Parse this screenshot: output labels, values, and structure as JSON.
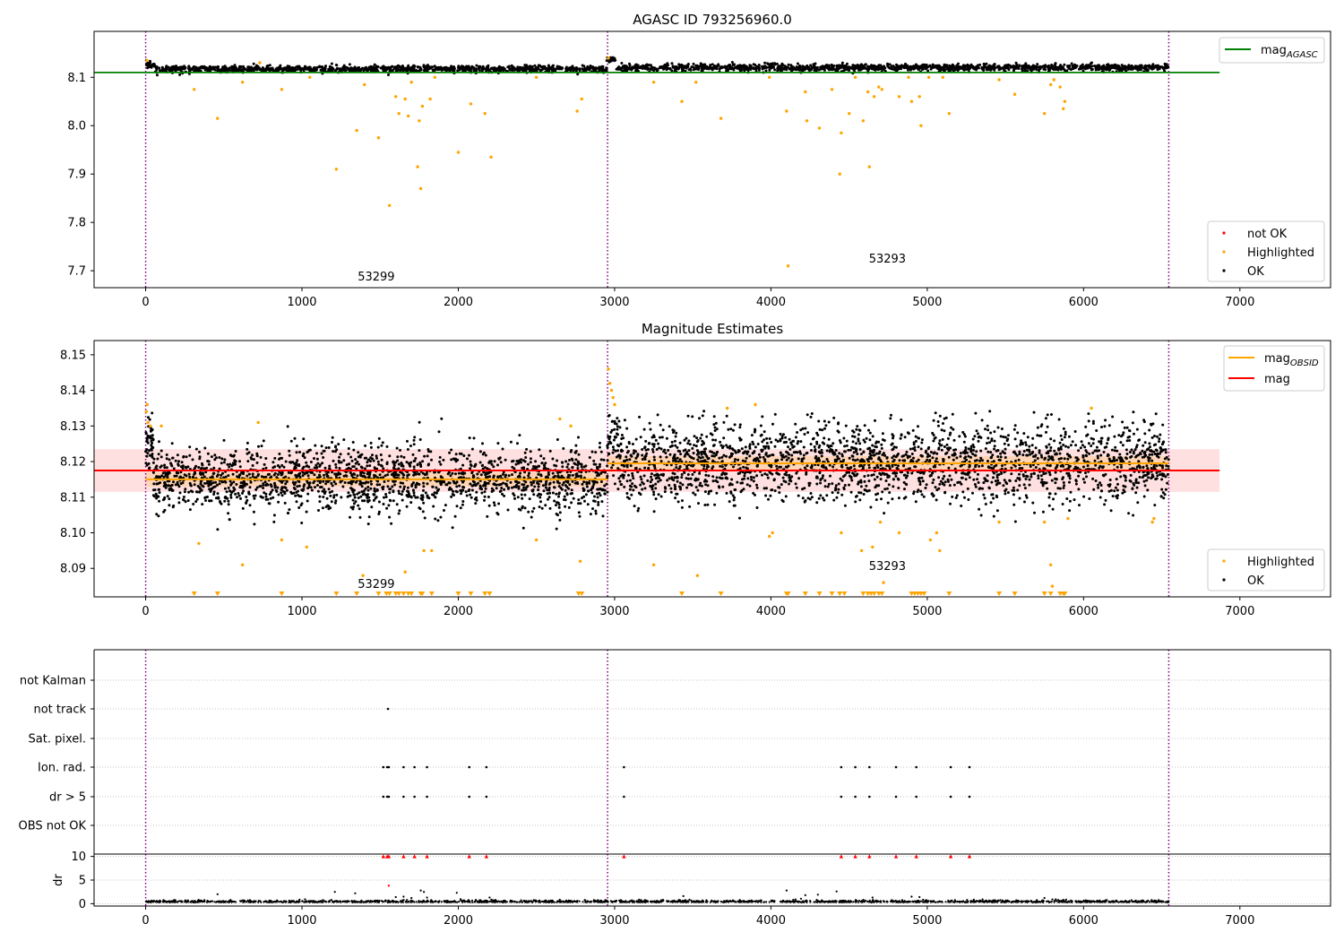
{
  "chart_data": [
    {
      "type": "scatter",
      "title": "AGASC ID 793256960.0",
      "xlabel": "",
      "ylabel": "",
      "xlim": [
        -330,
        7580
      ],
      "ylim": [
        7.665,
        8.195
      ],
      "xticks": [
        0,
        1000,
        2000,
        3000,
        4000,
        5000,
        6000,
        7000
      ],
      "yticks": [
        7.7,
        7.8,
        7.9,
        8.0,
        8.1
      ],
      "ytick_labels": [
        "7.7",
        "7.8",
        "7.9",
        "8.0",
        "8.1"
      ],
      "grid": false,
      "vlines": [
        0,
        2955,
        6545
      ],
      "vline_color": "#800080",
      "obsid_labels": [
        {
          "text": "53299",
          "x": 1475,
          "y": 7.68
        },
        {
          "text": "53293",
          "x": 4745,
          "y": 7.717
        }
      ],
      "reference_line": {
        "name": "mag_AGASC",
        "legend_main": "mag",
        "legend_sub": "AGASC",
        "y": 8.11,
        "x_range": [
          -330,
          6870
        ],
        "color": "#008000"
      },
      "series": [
        {
          "name": "not OK",
          "color": "#ff0000",
          "points": []
        },
        {
          "name": "Highlighted",
          "color": "#ffa500",
          "points": [
            [
              8,
              8.135
            ],
            [
              310,
              8.075
            ],
            [
              460,
              8.015
            ],
            [
              620,
              8.09
            ],
            [
              730,
              8.13
            ],
            [
              870,
              8.075
            ],
            [
              1050,
              8.1
            ],
            [
              1220,
              7.91
            ],
            [
              1350,
              7.99
            ],
            [
              1400,
              8.085
            ],
            [
              1490,
              7.975
            ],
            [
              1560,
              7.835
            ],
            [
              1600,
              8.06
            ],
            [
              1620,
              8.025
            ],
            [
              1660,
              8.055
            ],
            [
              1680,
              8.02
            ],
            [
              1700,
              8.09
            ],
            [
              1740,
              7.915
            ],
            [
              1750,
              8.01
            ],
            [
              1760,
              7.87
            ],
            [
              1770,
              8.04
            ],
            [
              1820,
              8.055
            ],
            [
              1850,
              8.1
            ],
            [
              2000,
              7.945
            ],
            [
              2080,
              8.045
            ],
            [
              2170,
              8.025
            ],
            [
              2210,
              7.935
            ],
            [
              2500,
              8.1
            ],
            [
              2760,
              8.03
            ],
            [
              2790,
              8.055
            ],
            [
              2960,
              8.14
            ],
            [
              3250,
              8.09
            ],
            [
              3430,
              8.05
            ],
            [
              3520,
              8.09
            ],
            [
              3680,
              8.015
            ],
            [
              3990,
              8.1
            ],
            [
              4100,
              8.03
            ],
            [
              4110,
              7.71
            ],
            [
              4220,
              8.07
            ],
            [
              4230,
              8.01
            ],
            [
              4310,
              7.995
            ],
            [
              4390,
              8.075
            ],
            [
              4440,
              7.9
            ],
            [
              4450,
              7.985
            ],
            [
              4500,
              8.025
            ],
            [
              4540,
              8.1
            ],
            [
              4590,
              8.01
            ],
            [
              4620,
              8.07
            ],
            [
              4630,
              7.915
            ],
            [
              4660,
              8.06
            ],
            [
              4690,
              8.08
            ],
            [
              4710,
              8.075
            ],
            [
              4820,
              8.06
            ],
            [
              4880,
              8.1
            ],
            [
              4900,
              8.05
            ],
            [
              4950,
              8.06
            ],
            [
              4960,
              8.0
            ],
            [
              5010,
              8.1
            ],
            [
              5100,
              8.1
            ],
            [
              5140,
              8.025
            ],
            [
              5460,
              8.095
            ],
            [
              5560,
              8.065
            ],
            [
              5750,
              8.025
            ],
            [
              5790,
              8.085
            ],
            [
              5810,
              8.095
            ],
            [
              5850,
              8.08
            ],
            [
              5870,
              8.035
            ],
            [
              5880,
              8.05
            ]
          ]
        },
        {
          "name": "OK",
          "color": "#000000",
          "x_range": [
            0,
            6545
          ],
          "y_center": 8.117,
          "y_spread": 0.005
        }
      ],
      "legend": {
        "position": "top-right",
        "entries": [
          "mag_AGASC"
        ]
      },
      "legend2": {
        "position": "lower-right",
        "entries": [
          "not OK",
          "Highlighted",
          "OK"
        ]
      }
    },
    {
      "type": "scatter",
      "title": "Magnitude Estimates",
      "xlabel": "",
      "ylabel": "",
      "xlim": [
        -330,
        7580
      ],
      "ylim": [
        8.082,
        8.154
      ],
      "xticks": [
        0,
        1000,
        2000,
        3000,
        4000,
        5000,
        6000,
        7000
      ],
      "yticks": [
        8.09,
        8.1,
        8.11,
        8.12,
        8.13,
        8.14,
        8.15
      ],
      "ytick_labels": [
        "8.09",
        "8.10",
        "8.11",
        "8.12",
        "8.13",
        "8.14",
        "8.15"
      ],
      "grid": false,
      "vlines": [
        0,
        2955,
        6545
      ],
      "vline_color": "#800080",
      "obsid_labels": [
        {
          "text": "53299",
          "x": 1475,
          "y": 8.0845
        },
        {
          "text": "53293",
          "x": 4745,
          "y": 8.0895
        }
      ],
      "mag": {
        "name": "mag",
        "y": 8.1175,
        "band": [
          8.1115,
          8.1235
        ],
        "x_range": [
          -330,
          6870
        ],
        "color": "#ff0000"
      },
      "mag_obsid": {
        "name": "mag_OBSID",
        "legend_main": "mag",
        "legend_sub": "OBSID",
        "color": "#ffa500",
        "segments": [
          {
            "x_range": [
              0,
              2955
            ],
            "y": 8.115,
            "band": [
              8.113,
              8.117
            ]
          },
          {
            "x_range": [
              2955,
              6545
            ],
            "y": 8.1195,
            "band": [
              8.1175,
              8.1215
            ]
          }
        ]
      },
      "clipped_marker_y": 8.0825,
      "clipped_x": [
        310,
        460,
        870,
        1220,
        1350,
        1490,
        1540,
        1560,
        1600,
        1620,
        1650,
        1680,
        1700,
        1760,
        1770,
        1830,
        2000,
        2080,
        2170,
        2200,
        2770,
        2790,
        3430,
        3680,
        4100,
        4110,
        4220,
        4310,
        4390,
        4440,
        4470,
        4590,
        4620,
        4640,
        4660,
        4690,
        4710,
        4900,
        4920,
        4940,
        4960,
        4980,
        5140,
        5460,
        5560,
        5750,
        5790,
        5850,
        5870,
        5880
      ],
      "series": [
        {
          "name": "Highlighted",
          "color": "#ffa500",
          "points": [
            [
              5,
              8.134
            ],
            [
              10,
              8.136
            ],
            [
              15,
              8.131
            ],
            [
              30,
              8.13
            ],
            [
              100,
              8.13
            ],
            [
              340,
              8.097
            ],
            [
              620,
              8.091
            ],
            [
              720,
              8.131
            ],
            [
              870,
              8.098
            ],
            [
              1030,
              8.096
            ],
            [
              1390,
              8.088
            ],
            [
              1660,
              8.089
            ],
            [
              1780,
              8.095
            ],
            [
              1830,
              8.095
            ],
            [
              2500,
              8.098
            ],
            [
              2650,
              8.132
            ],
            [
              2720,
              8.13
            ],
            [
              2780,
              8.092
            ],
            [
              2960,
              8.146
            ],
            [
              2970,
              8.142
            ],
            [
              2980,
              8.14
            ],
            [
              2990,
              8.138
            ],
            [
              3000,
              8.136
            ],
            [
              3250,
              8.091
            ],
            [
              3530,
              8.088
            ],
            [
              3720,
              8.135
            ],
            [
              3900,
              8.136
            ],
            [
              3990,
              8.099
            ],
            [
              4010,
              8.1
            ],
            [
              4450,
              8.1
            ],
            [
              4580,
              8.095
            ],
            [
              4650,
              8.096
            ],
            [
              4700,
              8.103
            ],
            [
              4720,
              8.086
            ],
            [
              4820,
              8.1
            ],
            [
              5020,
              8.098
            ],
            [
              5060,
              8.1
            ],
            [
              5080,
              8.095
            ],
            [
              5460,
              8.103
            ],
            [
              5750,
              8.103
            ],
            [
              5790,
              8.091
            ],
            [
              5800,
              8.085
            ],
            [
              5900,
              8.104
            ],
            [
              6050,
              8.135
            ],
            [
              6440,
              8.103
            ],
            [
              6450,
              8.104
            ]
          ]
        },
        {
          "name": "OK",
          "color": "#000000",
          "segments": [
            {
              "x_range": [
                0,
                2955
              ],
              "y_center": 8.115,
              "y_spread": 0.0045
            },
            {
              "x_range": [
                2955,
                6545
              ],
              "y_center": 8.1195,
              "y_spread": 0.0055
            }
          ]
        }
      ],
      "legend": {
        "position": "top-right",
        "entries": [
          "mag_OBSID",
          "mag"
        ]
      },
      "legend2": {
        "position": "lower-right",
        "entries": [
          "Highlighted",
          "OK"
        ]
      }
    },
    {
      "type": "scatter",
      "title": "",
      "xlabel": "",
      "ylabel": "",
      "xlim": [
        -330,
        7580
      ],
      "ylim": [
        0,
        7
      ],
      "xticks": [
        0,
        1000,
        2000,
        3000,
        4000,
        5000,
        6000,
        7000
      ],
      "grid": true,
      "vlines": [
        0,
        2955,
        6545
      ],
      "vline_color": "#800080",
      "flag_categories": [
        "not Kalman",
        "not track",
        "Sat. pixel.",
        "Ion. rad.",
        "dr > 5",
        "OBS not OK"
      ],
      "flag_points": {
        "not Kalman": [],
        "not track": [
          1550
        ],
        "Sat. pixel.": [],
        "Ion. rad.": [
          1520,
          1545,
          1555,
          1650,
          1720,
          1800,
          2070,
          2180,
          3060,
          4450,
          4540,
          4630,
          4800,
          4930,
          5150,
          5270
        ],
        "dr > 5": [
          1520,
          1545,
          1555,
          1650,
          1720,
          1800,
          2070,
          2180,
          3060,
          4450,
          4540,
          4630,
          4800,
          4930,
          5150,
          5270
        ],
        "OBS not OK": []
      }
    },
    {
      "type": "scatter",
      "title": "",
      "xlabel": "",
      "ylabel": "dr",
      "xlim": [
        -330,
        7580
      ],
      "ylim": [
        -0.5,
        10.5
      ],
      "xticks": [
        0,
        1000,
        2000,
        3000,
        4000,
        5000,
        6000,
        7000
      ],
      "yticks": [
        0,
        5,
        10
      ],
      "grid": true,
      "vlines": [
        0,
        2955,
        6545
      ],
      "vline_color": "#800080",
      "clipped_points": {
        "name": "not OK",
        "color": "#ff0000",
        "y": 10,
        "x": [
          1520,
          1545,
          1555,
          1650,
          1720,
          1800,
          2070,
          2180,
          3060,
          4450,
          4540,
          4630,
          4800,
          4930,
          5150,
          5270
        ]
      },
      "series": [
        {
          "name": "not OK",
          "color": "#ff0000",
          "points": [
            [
              1555,
              3.8
            ]
          ]
        },
        {
          "name": "OK",
          "color": "#000000",
          "x_range": [
            0,
            6545
          ],
          "y_center": 0.3,
          "y_spread": 0.2,
          "points": [
            [
              460,
              2.0
            ],
            [
              1210,
              2.5
            ],
            [
              1340,
              2.2
            ],
            [
              1600,
              1.4
            ],
            [
              1650,
              1.5
            ],
            [
              1700,
              1.2
            ],
            [
              1760,
              2.8
            ],
            [
              1780,
              2.5
            ],
            [
              1800,
              1.3
            ],
            [
              1990,
              2.3
            ],
            [
              2200,
              1.3
            ],
            [
              3440,
              1.6
            ],
            [
              4100,
              2.8
            ],
            [
              4220,
              1.8
            ],
            [
              4300,
              1.9
            ],
            [
              4420,
              2.6
            ],
            [
              4650,
              1.3
            ],
            [
              4900,
              1.5
            ],
            [
              4950,
              1.4
            ],
            [
              5750,
              1.2
            ],
            [
              5800,
              0.9
            ]
          ]
        }
      ]
    }
  ]
}
